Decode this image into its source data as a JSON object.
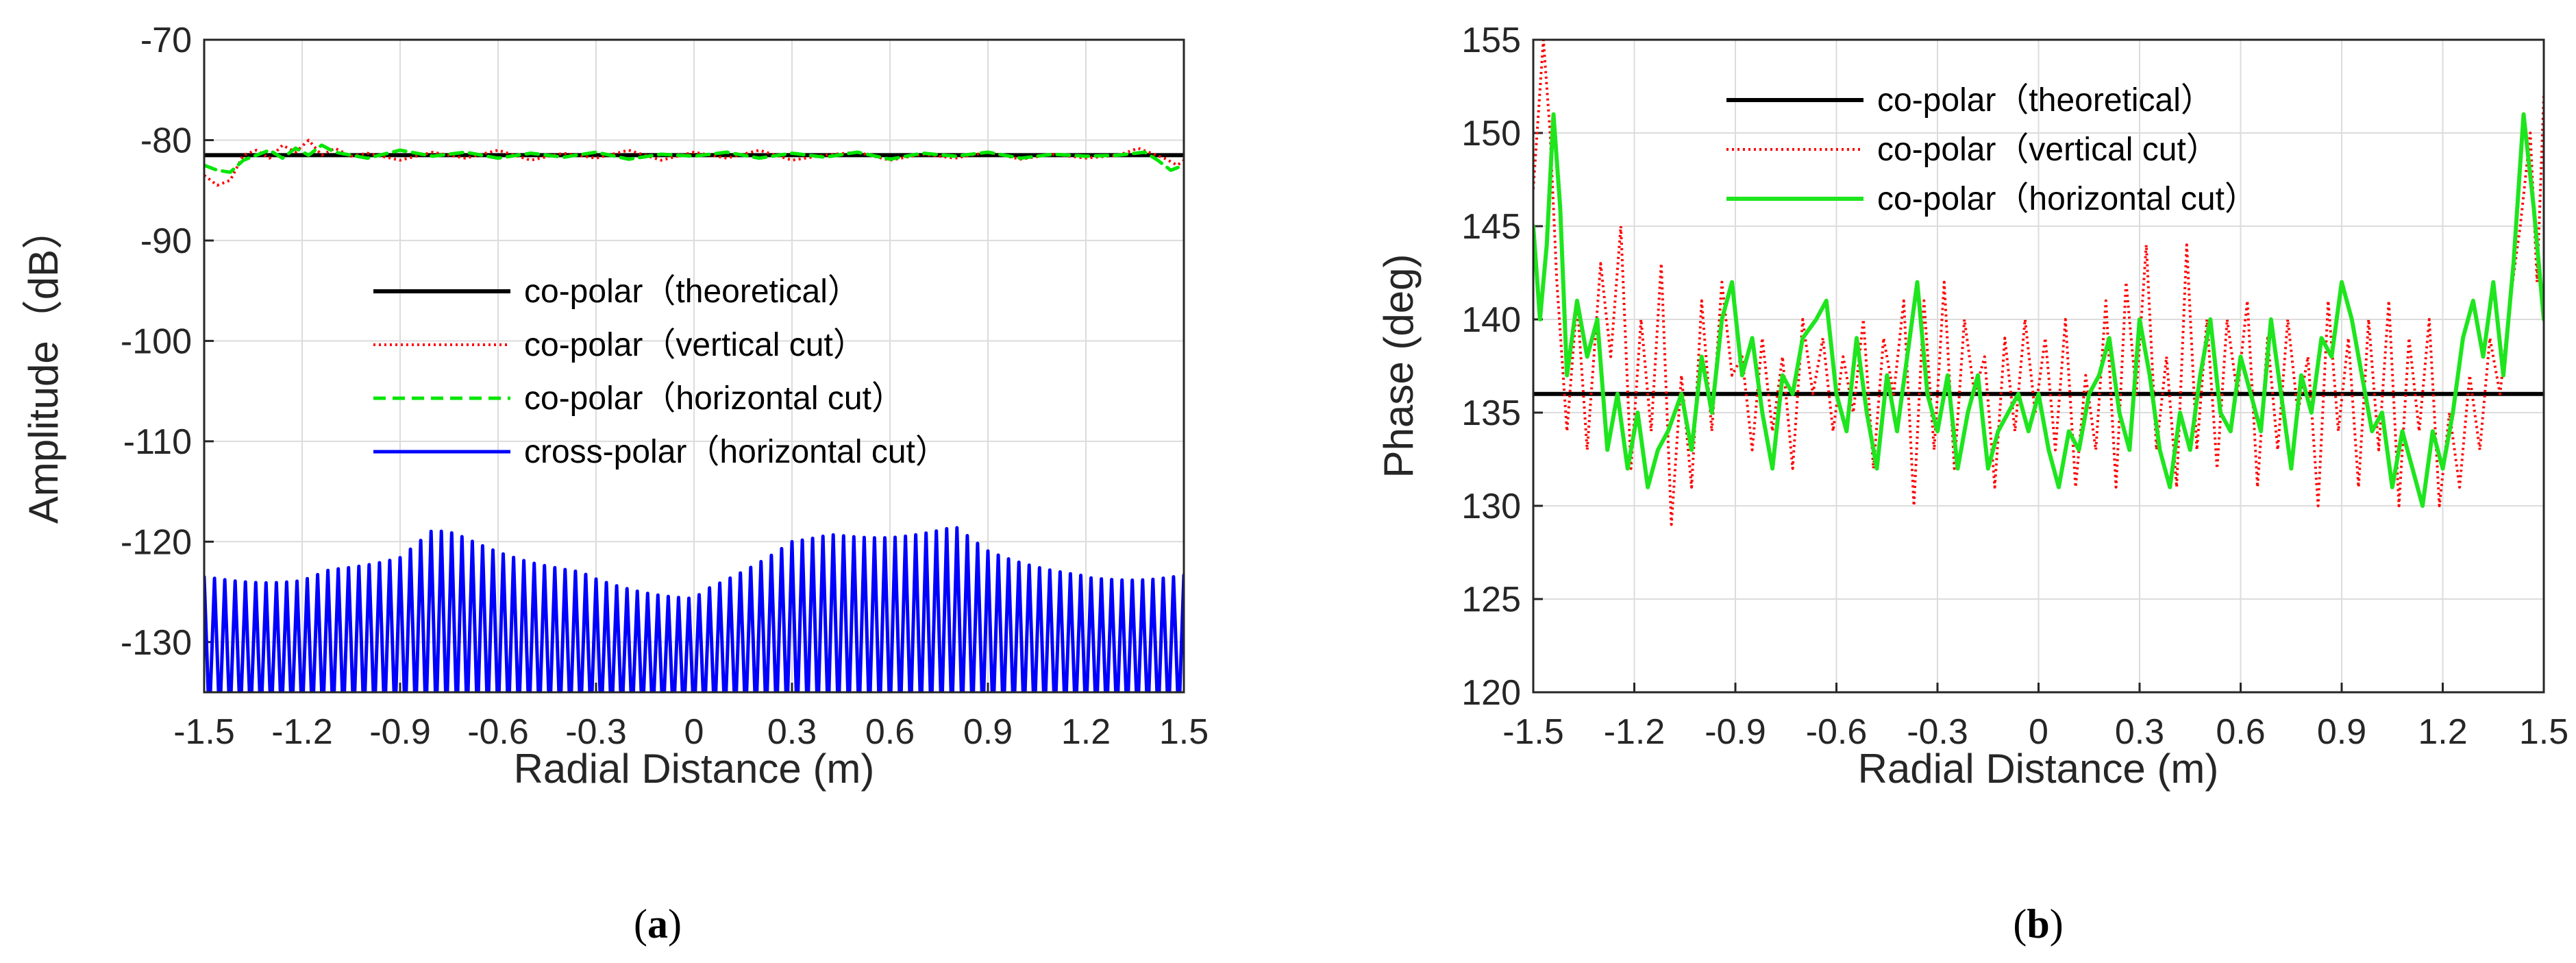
{
  "chart_data": [
    {
      "panel": "(a)",
      "panel_letter": "a",
      "type": "line",
      "xlabel": "Radial Distance (m)",
      "ylabel": "Amplitude（dB）",
      "xlim": [
        -1.5,
        1.5
      ],
      "ylim": [
        -135,
        -70
      ],
      "xticks": [
        "-1.5",
        "-1.2",
        "-0.9",
        "-0.6",
        "-0.3",
        "0",
        "0.3",
        "0.6",
        "0.9",
        "1.2",
        "1.5"
      ],
      "yticks": [
        "-130",
        "-120",
        "-110",
        "-100",
        "-90",
        "-80",
        "-70"
      ],
      "grid": true,
      "legend_position": "center",
      "series": [
        {
          "name": "co-polar（theoretical）",
          "color": "#000000",
          "style": "solid",
          "x": [
            -1.5,
            1.5
          ],
          "y": [
            -81.5,
            -81.5
          ]
        },
        {
          "name": "co-polar（vertical cut）",
          "color": "#ff0000",
          "style": "dotted",
          "x": [
            -1.5,
            -1.46,
            -1.42,
            -1.38,
            -1.34,
            -1.3,
            -1.26,
            -1.22,
            -1.18,
            -1.14,
            -1.1,
            -1.05,
            -1.0,
            -0.9,
            -0.8,
            -0.7,
            -0.6,
            -0.5,
            -0.4,
            -0.3,
            -0.2,
            -0.1,
            0.0,
            0.1,
            0.2,
            0.3,
            0.4,
            0.5,
            0.6,
            0.7,
            0.8,
            0.9,
            1.0,
            1.1,
            1.2,
            1.3,
            1.36,
            1.4,
            1.44,
            1.48,
            1.5
          ],
          "y": [
            -83.5,
            -84.5,
            -84.0,
            -81.5,
            -81.0,
            -81.8,
            -80.5,
            -81.2,
            -80.0,
            -81.5,
            -80.8,
            -81.6,
            -81.3,
            -82.0,
            -81.2,
            -81.8,
            -81.0,
            -82.0,
            -81.3,
            -81.8,
            -81.0,
            -82.0,
            -81.2,
            -81.8,
            -81.0,
            -82.0,
            -81.5,
            -81.2,
            -82.0,
            -81.4,
            -81.8,
            -81.2,
            -81.9,
            -81.4,
            -81.8,
            -81.5,
            -80.8,
            -81.3,
            -81.8,
            -82.5,
            -82.0
          ]
        },
        {
          "name": "co-polar（horizontal cut）",
          "color": "#00e600",
          "style": "dashed",
          "x": [
            -1.5,
            -1.46,
            -1.42,
            -1.38,
            -1.34,
            -1.3,
            -1.26,
            -1.22,
            -1.18,
            -1.14,
            -1.1,
            -1.0,
            -0.9,
            -0.8,
            -0.7,
            -0.6,
            -0.5,
            -0.4,
            -0.3,
            -0.2,
            -0.1,
            0.0,
            0.1,
            0.2,
            0.3,
            0.4,
            0.5,
            0.6,
            0.7,
            0.8,
            0.9,
            1.0,
            1.1,
            1.2,
            1.3,
            1.38,
            1.42,
            1.46,
            1.5
          ],
          "y": [
            -82.5,
            -83.0,
            -83.2,
            -82.0,
            -81.5,
            -81.0,
            -81.8,
            -80.8,
            -81.5,
            -80.5,
            -81.2,
            -81.8,
            -81.0,
            -81.6,
            -81.2,
            -81.8,
            -81.3,
            -81.7,
            -81.2,
            -81.9,
            -81.4,
            -81.6,
            -81.2,
            -81.8,
            -81.3,
            -81.7,
            -81.2,
            -81.9,
            -81.3,
            -81.6,
            -81.2,
            -81.8,
            -81.4,
            -81.6,
            -81.5,
            -81.2,
            -82.0,
            -83.0,
            -82.5
          ]
        },
        {
          "name": "cross-polar（horizontal cut）",
          "color": "#0000ff",
          "style": "solid",
          "x": [
            -1.5,
            -1.2,
            -0.9,
            -0.8,
            -0.6,
            -0.3,
            0.0,
            0.3,
            0.6,
            0.8,
            0.9,
            1.2,
            1.5
          ],
          "y": [
            -123.5,
            -123.5,
            -121.0,
            -118.5,
            -120.5,
            -123.5,
            -125.5,
            -119.5,
            -119.0,
            -118.5,
            -120.5,
            -123.5,
            -123.0
          ]
        }
      ]
    },
    {
      "panel": "(b)",
      "panel_letter": "b",
      "type": "line",
      "xlabel": "Radial Distance (m)",
      "ylabel": "Phase (deg)",
      "xlim": [
        -1.5,
        1.5
      ],
      "ylim": [
        120,
        155
      ],
      "xticks": [
        "-1.5",
        "-1.2",
        "-0.9",
        "-0.6",
        "-0.3",
        "0",
        "0.3",
        "0.6",
        "0.9",
        "1.2",
        "1.5"
      ],
      "yticks": [
        "120",
        "125",
        "130",
        "135",
        "140",
        "145",
        "150",
        "155"
      ],
      "grid": true,
      "legend_position": "top",
      "series": [
        {
          "name": "co-polar（theoretical）",
          "color": "#000000",
          "style": "solid",
          "x": [
            -1.5,
            1.5
          ],
          "y": [
            136,
            136
          ]
        },
        {
          "name": "co-polar（vertical cut）",
          "color": "#ff0000",
          "style": "dotted",
          "x": [
            -1.5,
            -1.47,
            -1.45,
            -1.43,
            -1.4,
            -1.37,
            -1.34,
            -1.3,
            -1.27,
            -1.24,
            -1.21,
            -1.18,
            -1.15,
            -1.12,
            -1.09,
            -1.06,
            -1.03,
            -1.0,
            -0.97,
            -0.94,
            -0.91,
            -0.88,
            -0.85,
            -0.82,
            -0.79,
            -0.76,
            -0.73,
            -0.7,
            -0.67,
            -0.64,
            -0.61,
            -0.58,
            -0.55,
            -0.52,
            -0.49,
            -0.46,
            -0.43,
            -0.4,
            -0.37,
            -0.34,
            -0.31,
            -0.28,
            -0.25,
            -0.22,
            -0.19,
            -0.16,
            -0.13,
            -0.1,
            -0.07,
            -0.04,
            -0.01,
            0.02,
            0.05,
            0.08,
            0.11,
            0.14,
            0.17,
            0.2,
            0.23,
            0.26,
            0.29,
            0.32,
            0.35,
            0.38,
            0.41,
            0.44,
            0.47,
            0.5,
            0.53,
            0.56,
            0.59,
            0.62,
            0.65,
            0.68,
            0.71,
            0.74,
            0.77,
            0.8,
            0.83,
            0.86,
            0.89,
            0.92,
            0.95,
            0.98,
            1.01,
            1.04,
            1.07,
            1.1,
            1.13,
            1.16,
            1.19,
            1.22,
            1.25,
            1.28,
            1.31,
            1.34,
            1.37,
            1.4,
            1.43,
            1.46,
            1.48,
            1.5
          ],
          "y": [
            147,
            155,
            150,
            142,
            134,
            141,
            133,
            143,
            138,
            145,
            132,
            140,
            134,
            143,
            129,
            137,
            131,
            141,
            134,
            142,
            137,
            138,
            133,
            139,
            134,
            138,
            132,
            140,
            136,
            139,
            134,
            138,
            135,
            140,
            132,
            139,
            136,
            141,
            130,
            141,
            133,
            142,
            132,
            140,
            136,
            138,
            131,
            139,
            134,
            140,
            135,
            139,
            133,
            140,
            131,
            137,
            133,
            141,
            131,
            142,
            136,
            144,
            133,
            138,
            131,
            144,
            133,
            140,
            132,
            140,
            136,
            141,
            131,
            139,
            133,
            140,
            135,
            138,
            130,
            141,
            134,
            139,
            131,
            140,
            133,
            141,
            130,
            139,
            134,
            140,
            130,
            135,
            131,
            137,
            133,
            139,
            136,
            141,
            145,
            150,
            142,
            152
          ]
        },
        {
          "name": "co-polar（horizontal cut）",
          "color": "#1ee51e",
          "style": "solid",
          "x": [
            -1.5,
            -1.48,
            -1.46,
            -1.44,
            -1.42,
            -1.4,
            -1.37,
            -1.34,
            -1.31,
            -1.28,
            -1.25,
            -1.22,
            -1.19,
            -1.16,
            -1.13,
            -1.1,
            -1.06,
            -1.03,
            -1.0,
            -0.97,
            -0.94,
            -0.91,
            -0.88,
            -0.85,
            -0.82,
            -0.79,
            -0.76,
            -0.73,
            -0.7,
            -0.66,
            -0.63,
            -0.6,
            -0.57,
            -0.54,
            -0.51,
            -0.48,
            -0.45,
            -0.42,
            -0.39,
            -0.36,
            -0.33,
            -0.3,
            -0.27,
            -0.24,
            -0.21,
            -0.18,
            -0.15,
            -0.12,
            -0.09,
            -0.06,
            -0.03,
            0.0,
            0.03,
            0.06,
            0.09,
            0.12,
            0.15,
            0.18,
            0.21,
            0.24,
            0.27,
            0.3,
            0.33,
            0.36,
            0.39,
            0.42,
            0.45,
            0.48,
            0.51,
            0.54,
            0.57,
            0.6,
            0.63,
            0.66,
            0.69,
            0.72,
            0.75,
            0.78,
            0.81,
            0.84,
            0.87,
            0.9,
            0.93,
            0.96,
            0.99,
            1.02,
            1.05,
            1.08,
            1.11,
            1.14,
            1.17,
            1.2,
            1.23,
            1.26,
            1.29,
            1.32,
            1.35,
            1.38,
            1.41,
            1.44,
            1.47,
            1.5
          ],
          "y": [
            145,
            140,
            144,
            151,
            146,
            137,
            141,
            138,
            140,
            133,
            136,
            132,
            135,
            131,
            133,
            134,
            136,
            133,
            138,
            135,
            140,
            142,
            137,
            139,
            135,
            132,
            137,
            136,
            139,
            140,
            141,
            136,
            134,
            139,
            135,
            132,
            137,
            134,
            138,
            142,
            136,
            134,
            137,
            132,
            135,
            137,
            132,
            134,
            135,
            136,
            134,
            136,
            133,
            131,
            134,
            133,
            136,
            137,
            139,
            135,
            133,
            140,
            137,
            133,
            131,
            135,
            133,
            137,
            140,
            135,
            134,
            138,
            136,
            134,
            140,
            136,
            132,
            137,
            135,
            139,
            138,
            142,
            140,
            137,
            134,
            135,
            131,
            134,
            132,
            130,
            134,
            132,
            135,
            139,
            141,
            138,
            142,
            137,
            143,
            151,
            146,
            140
          ]
        }
      ]
    }
  ]
}
